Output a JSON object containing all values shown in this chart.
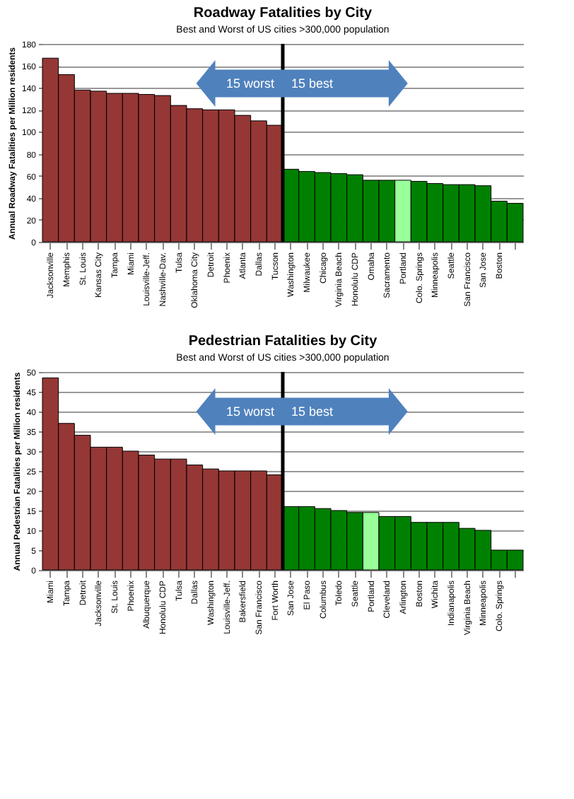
{
  "chart_data": [
    {
      "type": "bar",
      "title": "Roadway Fatalities by City",
      "subtitle": "Best and Worst of US cities >300,000 population",
      "ylabel": "Annual Roadway Fatalities per Million residents",
      "categories": [
        "Jacksonville",
        "Memphis",
        "St. Louis",
        "Kansas City",
        "Tampa",
        "Miami",
        "Louisville-Jeff.",
        "Nashville-Dav.",
        "Tulsa",
        "Oklahoma City",
        "Detroit",
        "Phoenix",
        "Atlanta",
        "Dallas",
        "Tucson",
        "Washington",
        "Milwaukee",
        "Chicago",
        "Virginia Beach",
        "Honolulu CDP",
        "Omaha",
        "Sacramento",
        "Portland",
        "Colo. Springs",
        "Minneapolis",
        "Seattle",
        "San Francisco",
        "San Jose",
        "Boston",
        null
      ],
      "values": [
        167,
        152,
        138,
        137,
        135,
        135,
        134,
        133,
        124,
        121,
        120,
        120,
        115,
        110,
        106,
        66,
        64,
        63,
        62,
        61,
        56,
        56,
        56,
        55,
        53,
        52,
        52,
        51,
        37,
        35
      ],
      "colors": [
        "#953735",
        "#953735",
        "#953735",
        "#953735",
        "#953735",
        "#953735",
        "#953735",
        "#953735",
        "#953735",
        "#953735",
        "#953735",
        "#953735",
        "#953735",
        "#953735",
        "#953735",
        "#008000",
        "#008000",
        "#008000",
        "#008000",
        "#008000",
        "#008000",
        "#008000",
        "#99ff99",
        "#008000",
        "#008000",
        "#008000",
        "#008000",
        "#008000",
        "#008000",
        "#008000"
      ],
      "ylim": [
        0,
        180
      ],
      "yticks": [
        0,
        20,
        40,
        60,
        80,
        100,
        120,
        140,
        160,
        180
      ],
      "grid": "y",
      "ref_lines": [
        {
          "axis": "x",
          "value": "Washington",
          "color": "#000000"
        }
      ],
      "annotations": [
        "15 worst",
        "15 best"
      ]
    },
    {
      "type": "bar",
      "title": "Pedestrian Fatalities by City",
      "subtitle": "Best and Worst of US cities >300,000 population",
      "ylabel": "Annual Pedestrian Fatalities per Million residents",
      "categories": [
        "Miami",
        "Tampa",
        "Detroit",
        "Jacksonville",
        "St. Louis",
        "Phoenix",
        "Albuquerque",
        "Honolulu CDP",
        "Tulsa",
        "Dallas",
        "Washington",
        "Louisville-Jeff.",
        "Bakersfield",
        "San Francisco",
        "Fort Worth",
        "San Jose",
        "El Paso",
        "Columbus",
        "Toledo",
        "Seattle",
        "Portland",
        "Cleveland",
        "Arlington",
        "Boston",
        "Wichita",
        "Indianapolis",
        "Virginia Beach",
        "Minneapolis",
        "Colo. Springs",
        null
      ],
      "values": [
        48.5,
        37,
        34,
        31,
        31,
        30,
        29,
        28,
        28,
        26.5,
        25.5,
        25,
        25,
        25,
        24,
        16,
        16,
        15.5,
        15,
        14.5,
        14.5,
        13.5,
        13.5,
        12,
        12,
        12,
        10.5,
        10,
        5,
        5
      ],
      "colors": [
        "#953735",
        "#953735",
        "#953735",
        "#953735",
        "#953735",
        "#953735",
        "#953735",
        "#953735",
        "#953735",
        "#953735",
        "#953735",
        "#953735",
        "#953735",
        "#953735",
        "#953735",
        "#008000",
        "#008000",
        "#008000",
        "#008000",
        "#008000",
        "#99ff99",
        "#008000",
        "#008000",
        "#008000",
        "#008000",
        "#008000",
        "#008000",
        "#008000",
        "#008000",
        "#008000"
      ],
      "ylim": [
        0,
        50
      ],
      "yticks": [
        0,
        5,
        10,
        15,
        20,
        25,
        30,
        35,
        40,
        45,
        50
      ],
      "grid": "y",
      "ref_lines": [
        {
          "axis": "x",
          "value": "San Jose",
          "color": "#000000"
        }
      ],
      "annotations": [
        "15 worst",
        "15 best"
      ]
    }
  ]
}
